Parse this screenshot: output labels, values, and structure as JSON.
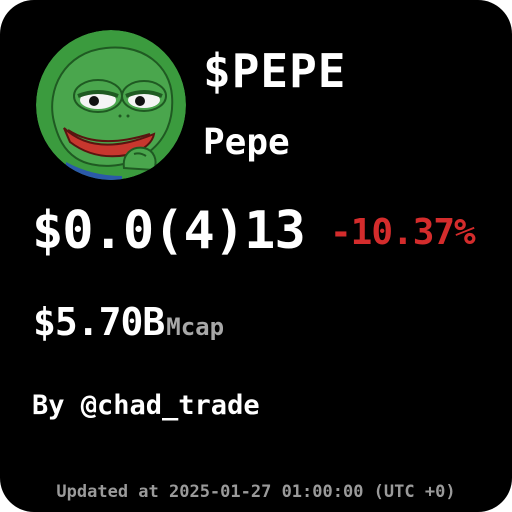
{
  "token": {
    "symbol": "$PEPE",
    "name": "Pepe",
    "avatar_icon": "pepe-frog-avatar-icon"
  },
  "price": {
    "value": "$0.0(4)13",
    "change": "-10.37%",
    "change_color": "#d42c2c"
  },
  "market_cap": {
    "value": "$5.70B",
    "label": "Mcap"
  },
  "author": "By @chad_trade",
  "updated": "Updated at 2025-01-27 01:00:00 (UTC +0)",
  "colors": {
    "background": "#000000",
    "text": "#ffffff",
    "muted": "#a8a8a8",
    "avatar_bg": "#3b9b3e"
  }
}
